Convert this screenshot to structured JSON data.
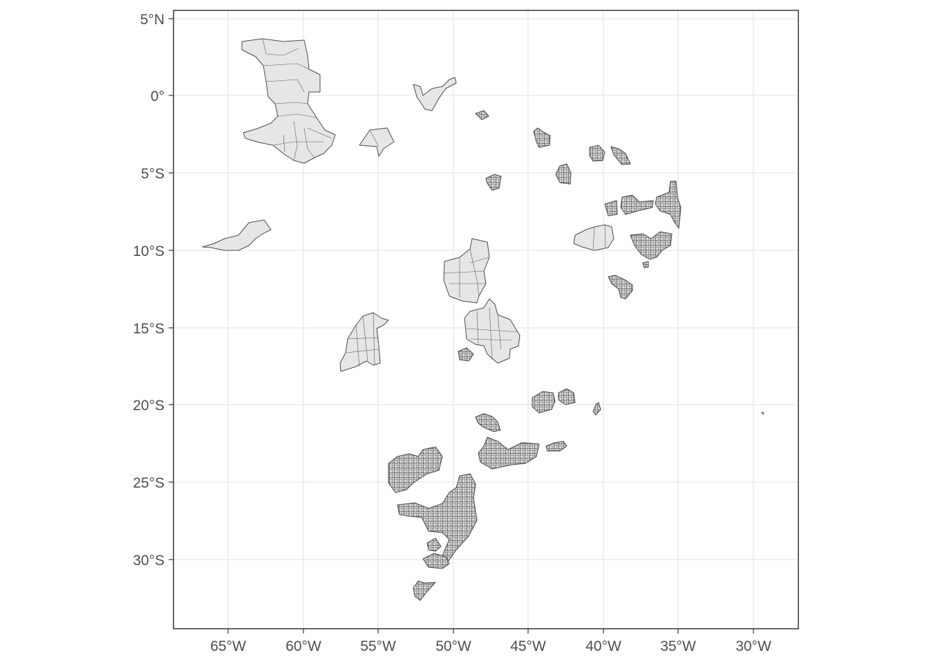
{
  "map": {
    "axes": {
      "lat_ticks": [
        "5°N",
        "0°",
        "5°S",
        "10°S",
        "15°S",
        "20°S",
        "25°S",
        "30°S"
      ],
      "lon_ticks": [
        "65°W",
        "60°W",
        "55°W",
        "50°W",
        "45°W",
        "40°W",
        "35°W",
        "30°W"
      ]
    },
    "colors": {
      "fill": "#e6e6e6",
      "border": "#4a4a4a",
      "grid": "#ebebeb",
      "panel_border": "#333333",
      "background": "#ffffff"
    }
  }
}
